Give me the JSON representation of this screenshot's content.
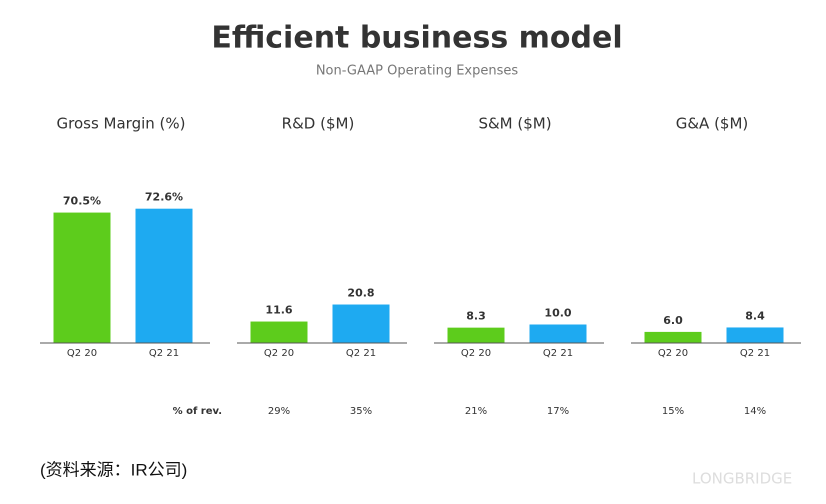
{
  "title": "Efficient business model",
  "subtitle": "Non-GAAP Operating Expenses",
  "pct_row_label": "% of rev.",
  "source": "(资料来源：IR公司)",
  "watermark": "LONGBRIDGE",
  "chart_data": [
    {
      "type": "bar",
      "title": "Gross Margin (%)",
      "categories": [
        "Q2 20",
        "Q2 21"
      ],
      "values": [
        70.5,
        72.6
      ],
      "value_labels": [
        "70.5%",
        "72.6%"
      ],
      "colors": [
        "#5dcc1c",
        "#1eaaf1"
      ],
      "ylim": [
        0,
        80
      ]
    },
    {
      "type": "bar",
      "title": "R&D ($M)",
      "categories": [
        "Q2 20",
        "Q2 21"
      ],
      "values": [
        11.6,
        20.8
      ],
      "value_labels": [
        "11.6",
        "20.8"
      ],
      "colors": [
        "#5dcc1c",
        "#1eaaf1"
      ],
      "ylim": [
        0,
        80
      ],
      "pct_of_rev": [
        "29%",
        "35%"
      ]
    },
    {
      "type": "bar",
      "title": "S&M ($M)",
      "categories": [
        "Q2 20",
        "Q2 21"
      ],
      "values": [
        8.3,
        10.0
      ],
      "value_labels": [
        "8.3",
        "10.0"
      ],
      "colors": [
        "#5dcc1c",
        "#1eaaf1"
      ],
      "ylim": [
        0,
        80
      ],
      "pct_of_rev": [
        "21%",
        "17%"
      ]
    },
    {
      "type": "bar",
      "title": "G&A ($M)",
      "categories": [
        "Q2 20",
        "Q2 21"
      ],
      "values": [
        6.0,
        8.4
      ],
      "value_labels": [
        "6.0",
        "8.4"
      ],
      "colors": [
        "#5dcc1c",
        "#1eaaf1"
      ],
      "ylim": [
        0,
        80
      ],
      "pct_of_rev": [
        "15%",
        "14%"
      ]
    }
  ]
}
